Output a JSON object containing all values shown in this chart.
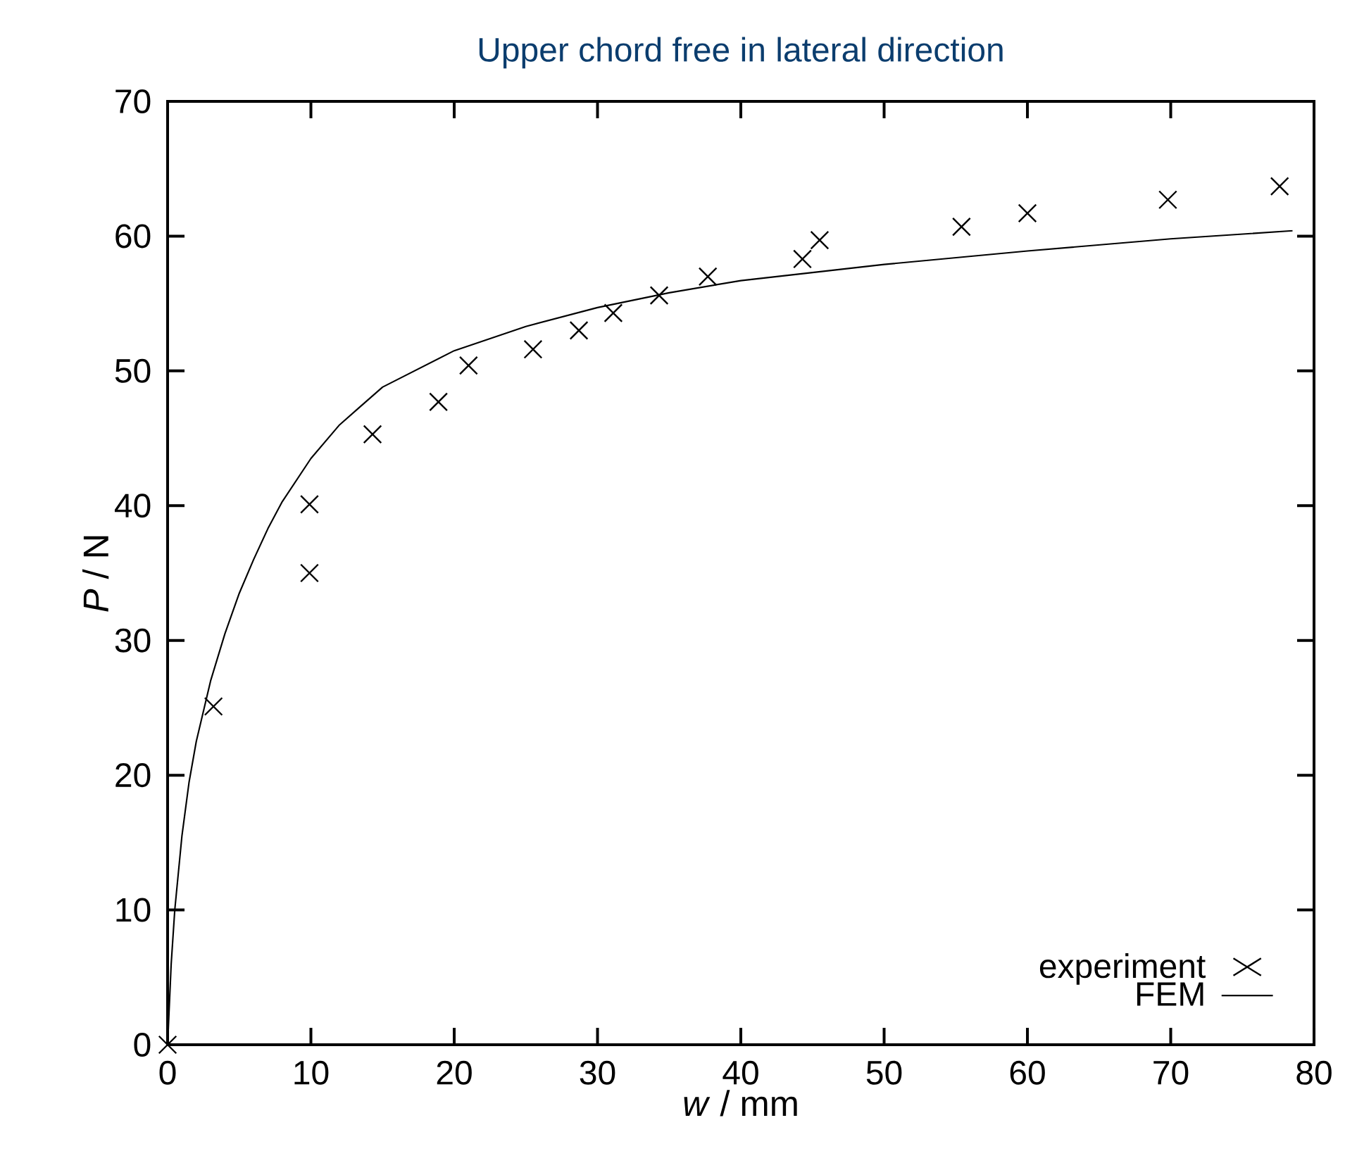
{
  "chart_data": {
    "type": "scatter",
    "title": "Upper chord free in lateral direction",
    "xlabel": "*w* / mm",
    "ylabel": "*P* / N",
    "xlim": [
      0,
      80
    ],
    "ylim": [
      0,
      70
    ],
    "xticks": [
      0,
      10,
      20,
      30,
      40,
      50,
      60,
      70,
      80
    ],
    "yticks": [
      0,
      10,
      20,
      30,
      40,
      50,
      60,
      70
    ],
    "grid": false,
    "legend": "bottom right",
    "series": [
      {
        "name": "experiment",
        "marker": "cross",
        "color": "#000000",
        "x": [
          0,
          3.2,
          9.9,
          9.9,
          14.3,
          18.9,
          21.0,
          25.5,
          28.7,
          31.1,
          34.3,
          37.7,
          44.3,
          45.5,
          55.4,
          60.0,
          69.8,
          77.6
        ],
        "values": [
          0,
          25.1,
          35.0,
          40.1,
          45.3,
          47.7,
          50.4,
          51.6,
          53.0,
          54.3,
          55.6,
          57.0,
          58.3,
          59.7,
          60.7,
          61.7,
          62.7,
          63.7
        ]
      },
      {
        "name": "FEM",
        "type": "line",
        "marker": "none",
        "line_style": "solid",
        "color": "#000000",
        "x": [
          0,
          0.25,
          0.5,
          1,
          1.5,
          2,
          3,
          4,
          5,
          6,
          7,
          8,
          10,
          12,
          15,
          20,
          25,
          30,
          35,
          40,
          50,
          60,
          70,
          78.5
        ],
        "values": [
          0,
          6,
          10,
          15.5,
          19.5,
          22.5,
          27,
          30.5,
          33.5,
          36,
          38.3,
          40.3,
          43.5,
          46,
          48.8,
          51.5,
          53.3,
          54.7,
          55.8,
          56.7,
          57.9,
          58.9,
          59.8,
          60.4
        ]
      }
    ]
  }
}
